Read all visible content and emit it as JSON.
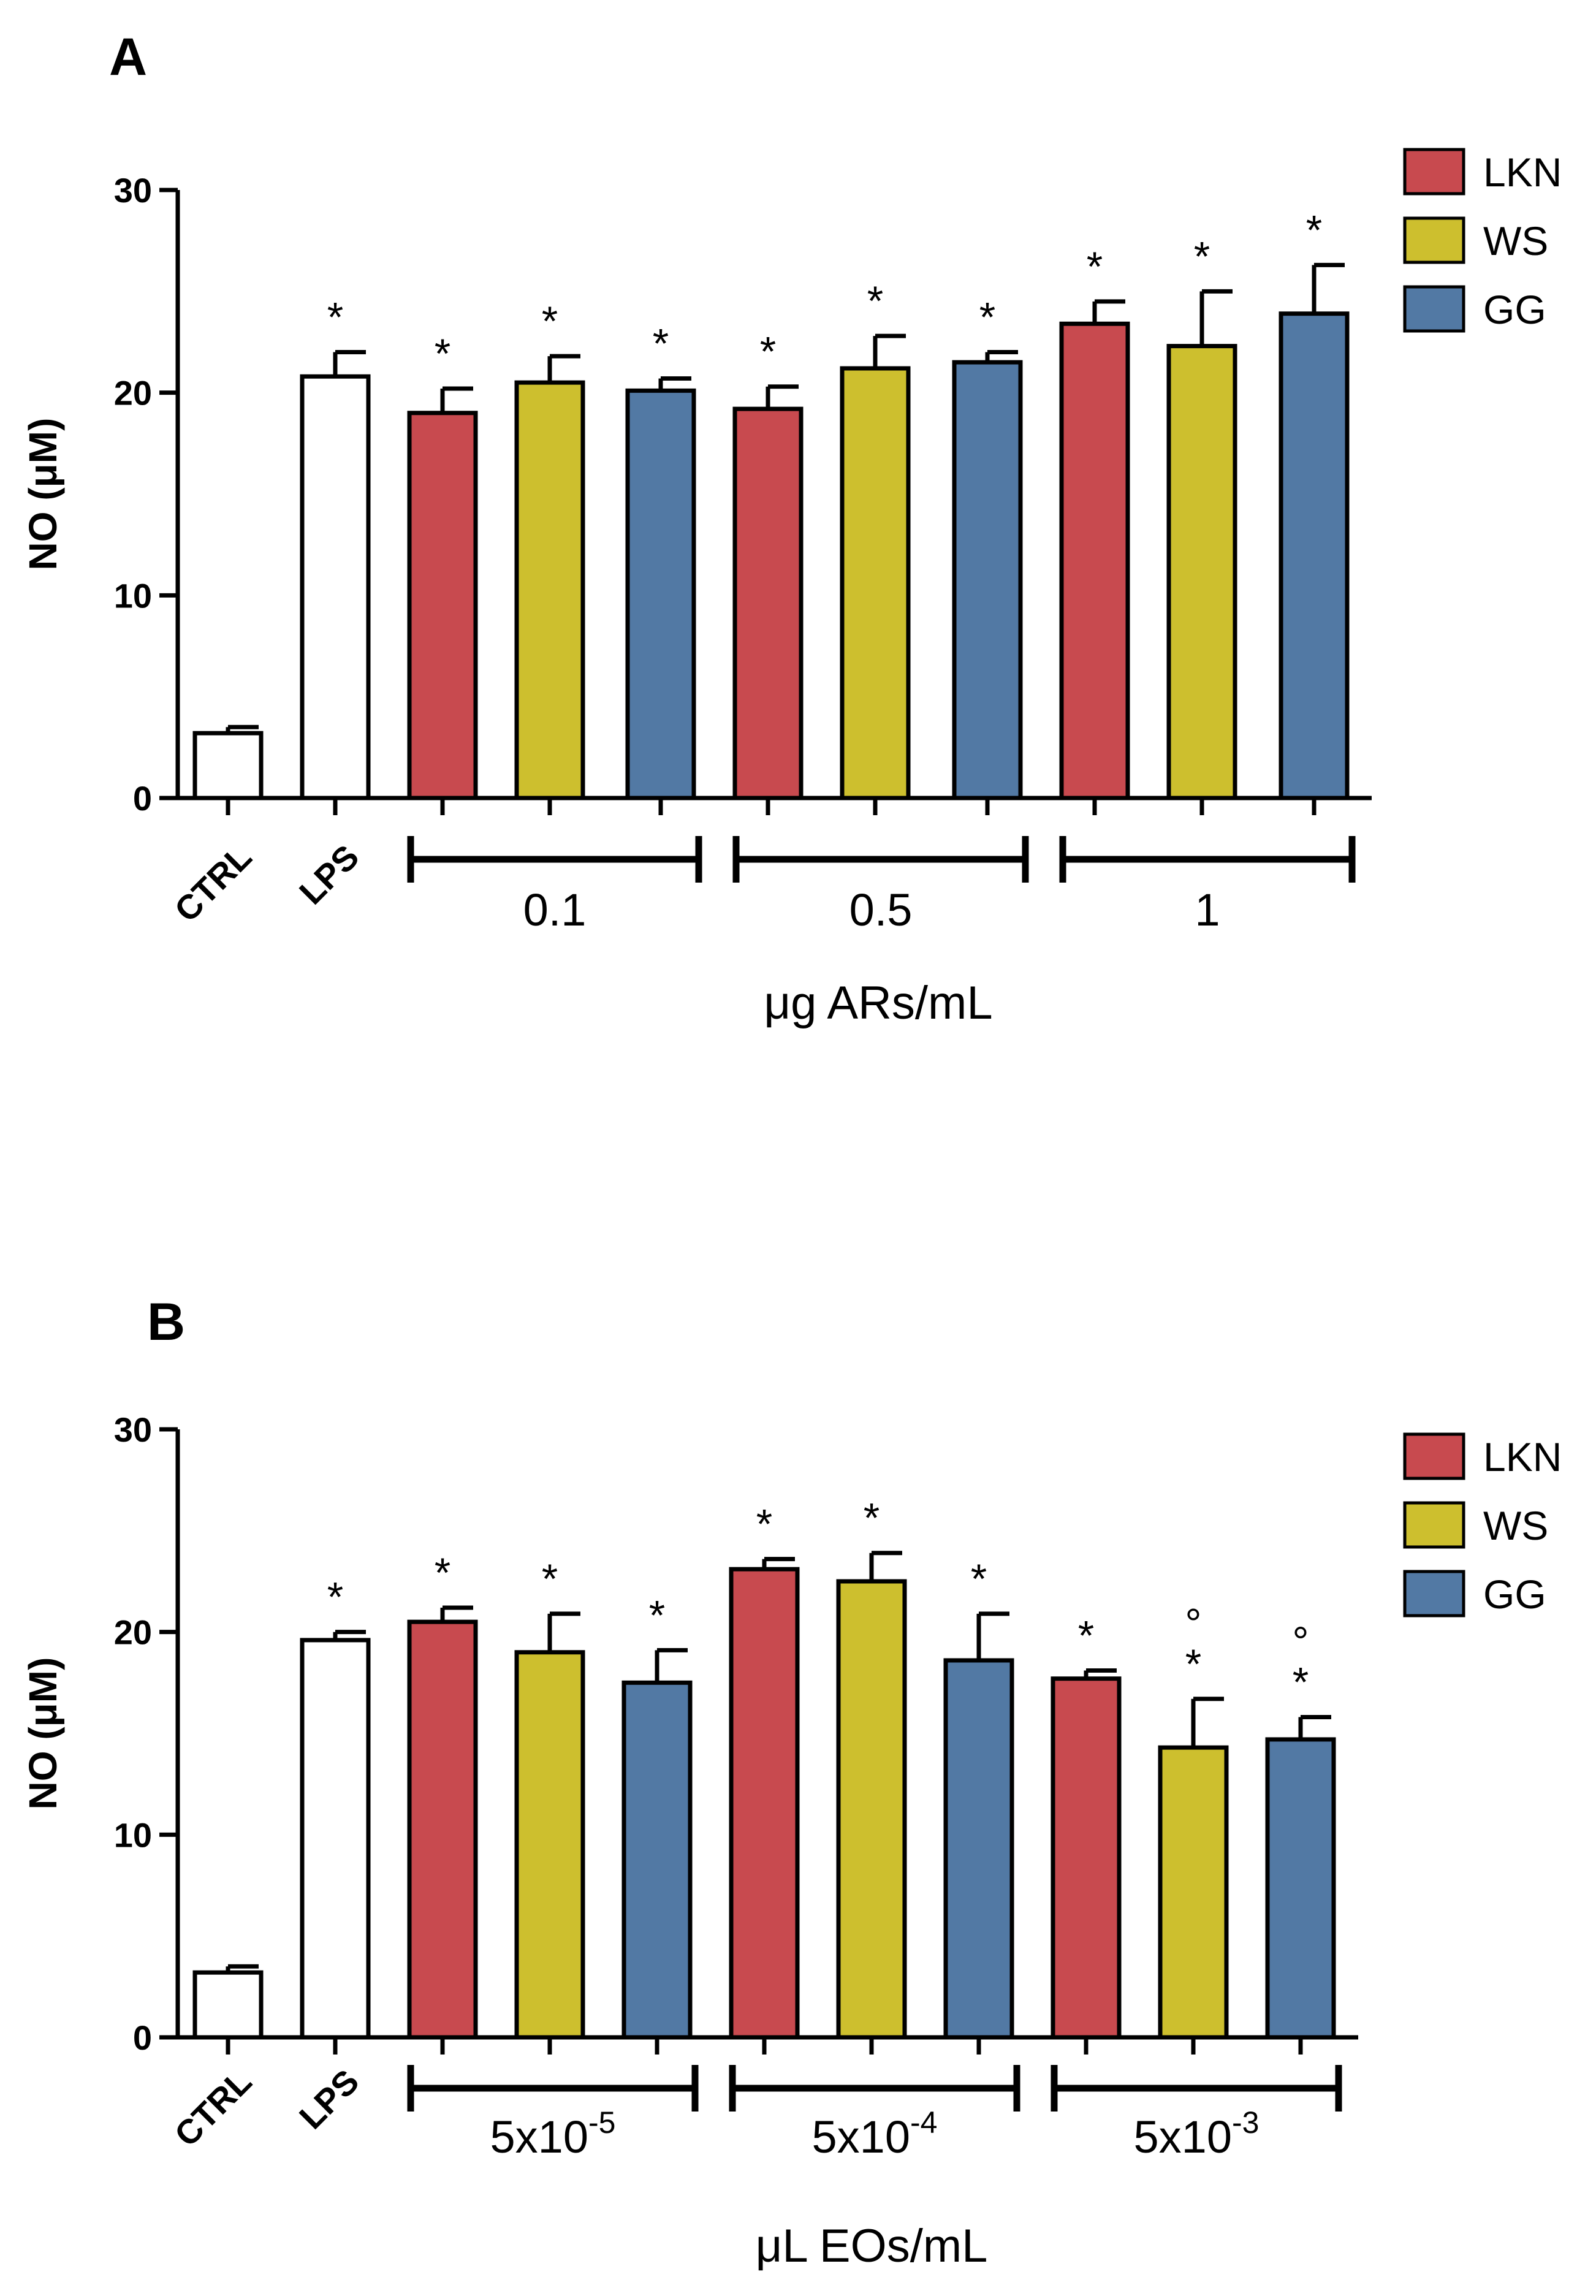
{
  "legend": {
    "items": [
      {
        "name": "LKN",
        "color": "#c84a4f"
      },
      {
        "name": "WS",
        "color": "#cdbf2e"
      },
      {
        "name": "GG",
        "color": "#5279a4"
      }
    ]
  },
  "chart_data": [
    {
      "panel": "A",
      "type": "bar",
      "ylabel": "NO (μM)",
      "xlabel": "μg ARs/mL",
      "ylim": [
        0,
        30
      ],
      "yticks": [
        "0",
        "10",
        "20",
        "30"
      ],
      "controls": [
        {
          "label": "CTRL",
          "value": 3.2,
          "error": 0.3,
          "star": ""
        },
        {
          "label": "LPS",
          "value": 20.8,
          "error": 1.2,
          "star": "*"
        }
      ],
      "groups": [
        {
          "label": "0.1",
          "exp": "",
          "bars": [
            {
              "series": "LKN",
              "value": 19.0,
              "error": 1.2,
              "star": "*",
              "mark": ""
            },
            {
              "series": "WS",
              "value": 20.5,
              "error": 1.3,
              "star": "*",
              "mark": ""
            },
            {
              "series": "GG",
              "value": 20.1,
              "error": 0.6,
              "star": "*",
              "mark": ""
            }
          ]
        },
        {
          "label": "0.5",
          "exp": "",
          "bars": [
            {
              "series": "LKN",
              "value": 19.2,
              "error": 1.1,
              "star": "*",
              "mark": ""
            },
            {
              "series": "WS",
              "value": 21.2,
              "error": 1.6,
              "star": "*",
              "mark": ""
            },
            {
              "series": "GG",
              "value": 21.5,
              "error": 0.5,
              "star": "*",
              "mark": ""
            }
          ]
        },
        {
          "label": "1",
          "exp": "",
          "bars": [
            {
              "series": "LKN",
              "value": 23.4,
              "error": 1.1,
              "star": "*",
              "mark": ""
            },
            {
              "series": "WS",
              "value": 22.3,
              "error": 2.7,
              "star": "*",
              "mark": ""
            },
            {
              "series": "GG",
              "value": 23.9,
              "error": 2.4,
              "star": "*",
              "mark": ""
            }
          ]
        }
      ]
    },
    {
      "panel": "B",
      "type": "bar",
      "ylabel": "NO (μM)",
      "xlabel": "μL EOs/mL",
      "ylim": [
        0,
        30
      ],
      "yticks": [
        "0",
        "10",
        "20",
        "30"
      ],
      "controls": [
        {
          "label": "CTRL",
          "value": 3.2,
          "error": 0.3,
          "star": ""
        },
        {
          "label": "LPS",
          "value": 19.6,
          "error": 0.4,
          "star": "*"
        }
      ],
      "groups": [
        {
          "label": "5x10",
          "exp": "-5",
          "bars": [
            {
              "series": "LKN",
              "value": 20.5,
              "error": 0.7,
              "star": "*",
              "mark": ""
            },
            {
              "series": "WS",
              "value": 19.0,
              "error": 1.9,
              "star": "*",
              "mark": ""
            },
            {
              "series": "GG",
              "value": 17.5,
              "error": 1.6,
              "star": "*",
              "mark": ""
            }
          ]
        },
        {
          "label": "5x10",
          "exp": "-4",
          "bars": [
            {
              "series": "LKN",
              "value": 23.1,
              "error": 0.5,
              "star": "*",
              "mark": ""
            },
            {
              "series": "WS",
              "value": 22.5,
              "error": 1.4,
              "star": "*",
              "mark": ""
            },
            {
              "series": "GG",
              "value": 18.6,
              "error": 2.3,
              "star": "*",
              "mark": ""
            }
          ]
        },
        {
          "label": "5x10",
          "exp": "-3",
          "bars": [
            {
              "series": "LKN",
              "value": 17.7,
              "error": 0.4,
              "star": "*",
              "mark": ""
            },
            {
              "series": "WS",
              "value": 14.3,
              "error": 2.4,
              "star": "*",
              "mark": "°"
            },
            {
              "series": "GG",
              "value": 14.7,
              "error": 1.1,
              "star": "*",
              "mark": "°"
            }
          ]
        }
      ]
    }
  ]
}
